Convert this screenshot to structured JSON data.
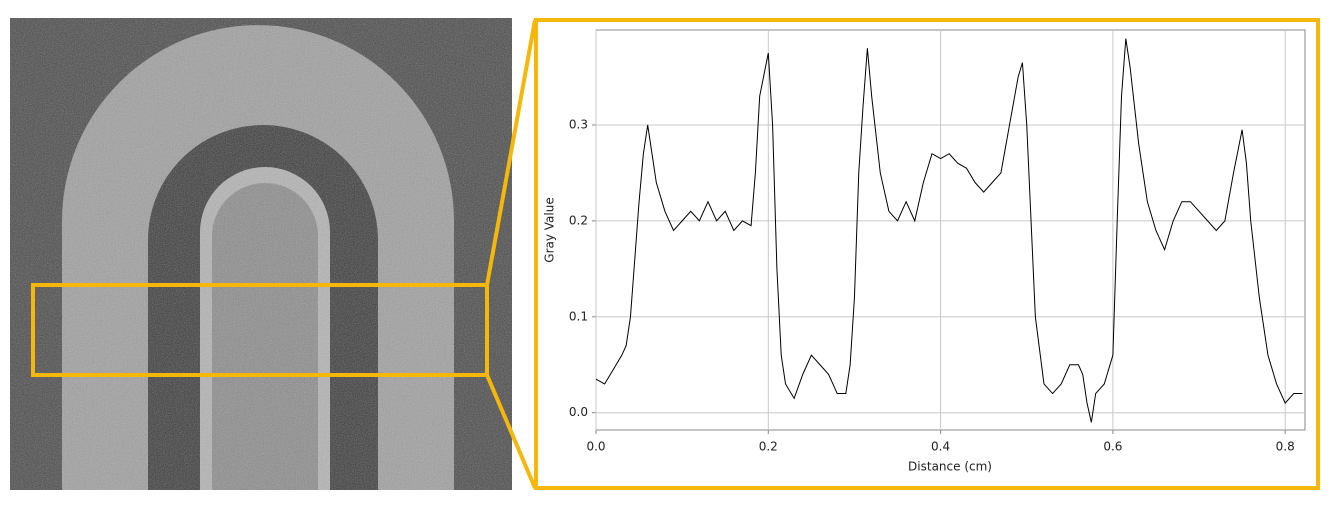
{
  "chart_data": {
    "type": "line",
    "x_label": "Distance (cm)",
    "y_label": "Gray Value",
    "x": [
      0.0,
      0.01,
      0.02,
      0.03,
      0.035,
      0.04,
      0.045,
      0.05,
      0.055,
      0.06,
      0.065,
      0.07,
      0.08,
      0.09,
      0.1,
      0.11,
      0.12,
      0.13,
      0.14,
      0.15,
      0.16,
      0.17,
      0.18,
      0.185,
      0.19,
      0.2,
      0.205,
      0.21,
      0.215,
      0.22,
      0.23,
      0.24,
      0.25,
      0.26,
      0.27,
      0.28,
      0.29,
      0.295,
      0.3,
      0.305,
      0.31,
      0.315,
      0.32,
      0.33,
      0.34,
      0.35,
      0.36,
      0.37,
      0.38,
      0.39,
      0.4,
      0.41,
      0.42,
      0.43,
      0.44,
      0.45,
      0.46,
      0.47,
      0.48,
      0.49,
      0.495,
      0.5,
      0.505,
      0.51,
      0.52,
      0.53,
      0.54,
      0.55,
      0.56,
      0.565,
      0.57,
      0.575,
      0.58,
      0.59,
      0.6,
      0.605,
      0.61,
      0.615,
      0.62,
      0.63,
      0.64,
      0.65,
      0.66,
      0.67,
      0.68,
      0.69,
      0.7,
      0.71,
      0.72,
      0.73,
      0.74,
      0.75,
      0.755,
      0.76,
      0.77,
      0.78,
      0.79,
      0.8,
      0.81,
      0.82
    ],
    "values": [
      0.035,
      0.03,
      0.045,
      0.06,
      0.07,
      0.1,
      0.16,
      0.22,
      0.27,
      0.3,
      0.27,
      0.24,
      0.21,
      0.19,
      0.2,
      0.21,
      0.2,
      0.22,
      0.2,
      0.21,
      0.19,
      0.2,
      0.195,
      0.25,
      0.33,
      0.375,
      0.3,
      0.15,
      0.06,
      0.03,
      0.015,
      0.04,
      0.06,
      0.05,
      0.04,
      0.02,
      0.02,
      0.05,
      0.12,
      0.25,
      0.32,
      0.38,
      0.33,
      0.25,
      0.21,
      0.2,
      0.22,
      0.2,
      0.24,
      0.27,
      0.265,
      0.27,
      0.26,
      0.255,
      0.24,
      0.23,
      0.24,
      0.25,
      0.3,
      0.35,
      0.365,
      0.3,
      0.2,
      0.1,
      0.03,
      0.02,
      0.03,
      0.05,
      0.05,
      0.04,
      0.01,
      -0.01,
      0.02,
      0.03,
      0.06,
      0.2,
      0.33,
      0.39,
      0.36,
      0.28,
      0.22,
      0.19,
      0.17,
      0.2,
      0.22,
      0.22,
      0.21,
      0.2,
      0.19,
      0.2,
      0.25,
      0.295,
      0.26,
      0.2,
      0.12,
      0.06,
      0.03,
      0.01,
      0.02,
      0.02
    ],
    "color": "#000000",
    "xlim": [
      0,
      0.823
    ],
    "ylim": [
      -0.018,
      0.399
    ],
    "xticks": [
      {
        "value": 0,
        "label": "0.0"
      },
      0.2,
      0.4,
      0.6,
      0.8
    ],
    "yticks": [
      {
        "value": 0,
        "label": "0.0"
      },
      0.1,
      0.2,
      0.3
    ],
    "grid": true
  }
}
